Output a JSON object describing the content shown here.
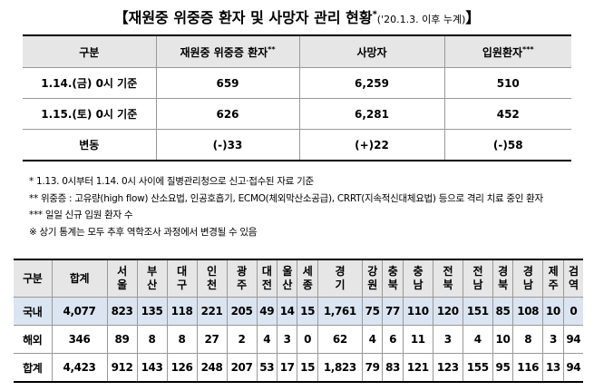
{
  "title": {
    "open": "【",
    "main": "재원중 위중증 환자 및 사망자 관리 현황",
    "sup": "*",
    "sub": "('20.1.3. 이후 누계)",
    "close": "】"
  },
  "table1": {
    "headers": [
      {
        "text": "구분",
        "sup": ""
      },
      {
        "text": "재원중 위중증 환자",
        "sup": "**"
      },
      {
        "text": "사망자",
        "sup": ""
      },
      {
        "text": "입원환자",
        "sup": "***"
      }
    ],
    "rows": [
      [
        "1.14.(금) 0시 기준",
        "659",
        "6,259",
        "510"
      ],
      [
        "1.15.(토) 0시 기준",
        "626",
        "6,281",
        "452"
      ],
      [
        "변동",
        "(-)33",
        "(+)22",
        "(-)58"
      ]
    ]
  },
  "notes": [
    "* 1.13. 0시부터 1.14. 0시 사이에 질병관리청으로 신고·접수된 자료 기준",
    "** 위중증 : 고유량(high flow) 산소요법, 인공호흡기, ECMO(체외막산소공급), CRRT(지속적신대체요법) 등으로 격리 치료 중인 환자",
    "*** 일일 신규 입원 환자 수",
    "※ 상기 통계는 모두 추후 역학조사 과정에서 변경될 수 있음"
  ],
  "table2": {
    "headers": [
      "구분",
      "합계",
      "서울",
      "부산",
      "대구",
      "인천",
      "광주",
      "대전",
      "울산",
      "세종",
      "경기",
      "강원",
      "충북",
      "충남",
      "전북",
      "전남",
      "경북",
      "경남",
      "제주",
      "검역"
    ],
    "rows": [
      [
        "국내",
        "4,077",
        "823",
        "135",
        "118",
        "221",
        "205",
        "49",
        "14",
        "15",
        "1,761",
        "75",
        "77",
        "110",
        "120",
        "151",
        "85",
        "108",
        "10",
        "0"
      ],
      [
        "해외",
        "346",
        "89",
        "8",
        "8",
        "27",
        "2",
        "4",
        "3",
        "0",
        "62",
        "4",
        "6",
        "11",
        "3",
        "4",
        "10",
        "8",
        "3",
        "94"
      ],
      [
        "합계",
        "4,423",
        "912",
        "143",
        "126",
        "248",
        "207",
        "53",
        "17",
        "15",
        "1,823",
        "79",
        "83",
        "121",
        "123",
        "155",
        "95",
        "116",
        "13",
        "94"
      ]
    ]
  }
}
